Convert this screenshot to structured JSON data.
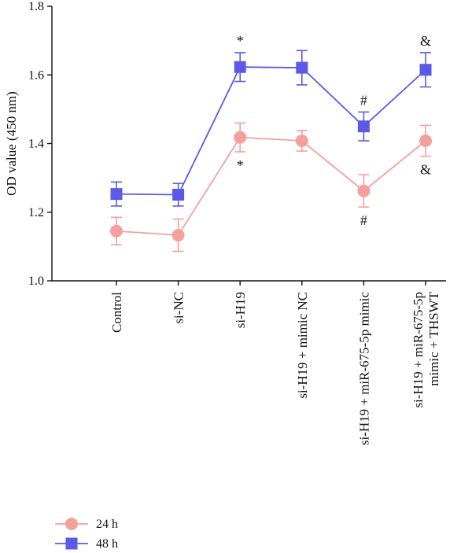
{
  "chart_data": {
    "type": "line",
    "title": "",
    "xlabel": "",
    "ylabel": "OD value (450 nm)",
    "ylim": [
      1.0,
      1.8
    ],
    "yticks": [
      1.0,
      1.2,
      1.4,
      1.6,
      1.8
    ],
    "ytick_labels": [
      "1.0",
      "1.2",
      "1.4",
      "1.6",
      "1.8"
    ],
    "grid": false,
    "legend_placement": "bottom-left",
    "categories": [
      [
        "Control"
      ],
      [
        "si-NC"
      ],
      [
        "si-H19"
      ],
      [
        "si-H19 + mimic NC"
      ],
      [
        "si-H19 + miR-675-5p mimic"
      ],
      [
        "si-H19 + miR-675-5p",
        "mimic + THSWT"
      ]
    ],
    "series": [
      {
        "name": "24 h",
        "color": "#f4a09c",
        "marker": "circle",
        "values": [
          1.145,
          1.133,
          1.418,
          1.408,
          1.262,
          1.408
        ],
        "errors": [
          0.04,
          0.047,
          0.042,
          0.03,
          0.047,
          0.045
        ],
        "annotations": [
          "",
          "",
          "*",
          "",
          "#",
          "&"
        ],
        "annotation_position": "below"
      },
      {
        "name": "48 h",
        "color": "#5a5ae6",
        "marker": "square",
        "values": [
          1.253,
          1.251,
          1.623,
          1.621,
          1.45,
          1.615
        ],
        "errors": [
          0.035,
          0.033,
          0.042,
          0.05,
          0.042,
          0.05
        ],
        "annotations": [
          "",
          "",
          "*",
          "",
          "#",
          "&"
        ],
        "annotation_position": "above"
      }
    ]
  }
}
